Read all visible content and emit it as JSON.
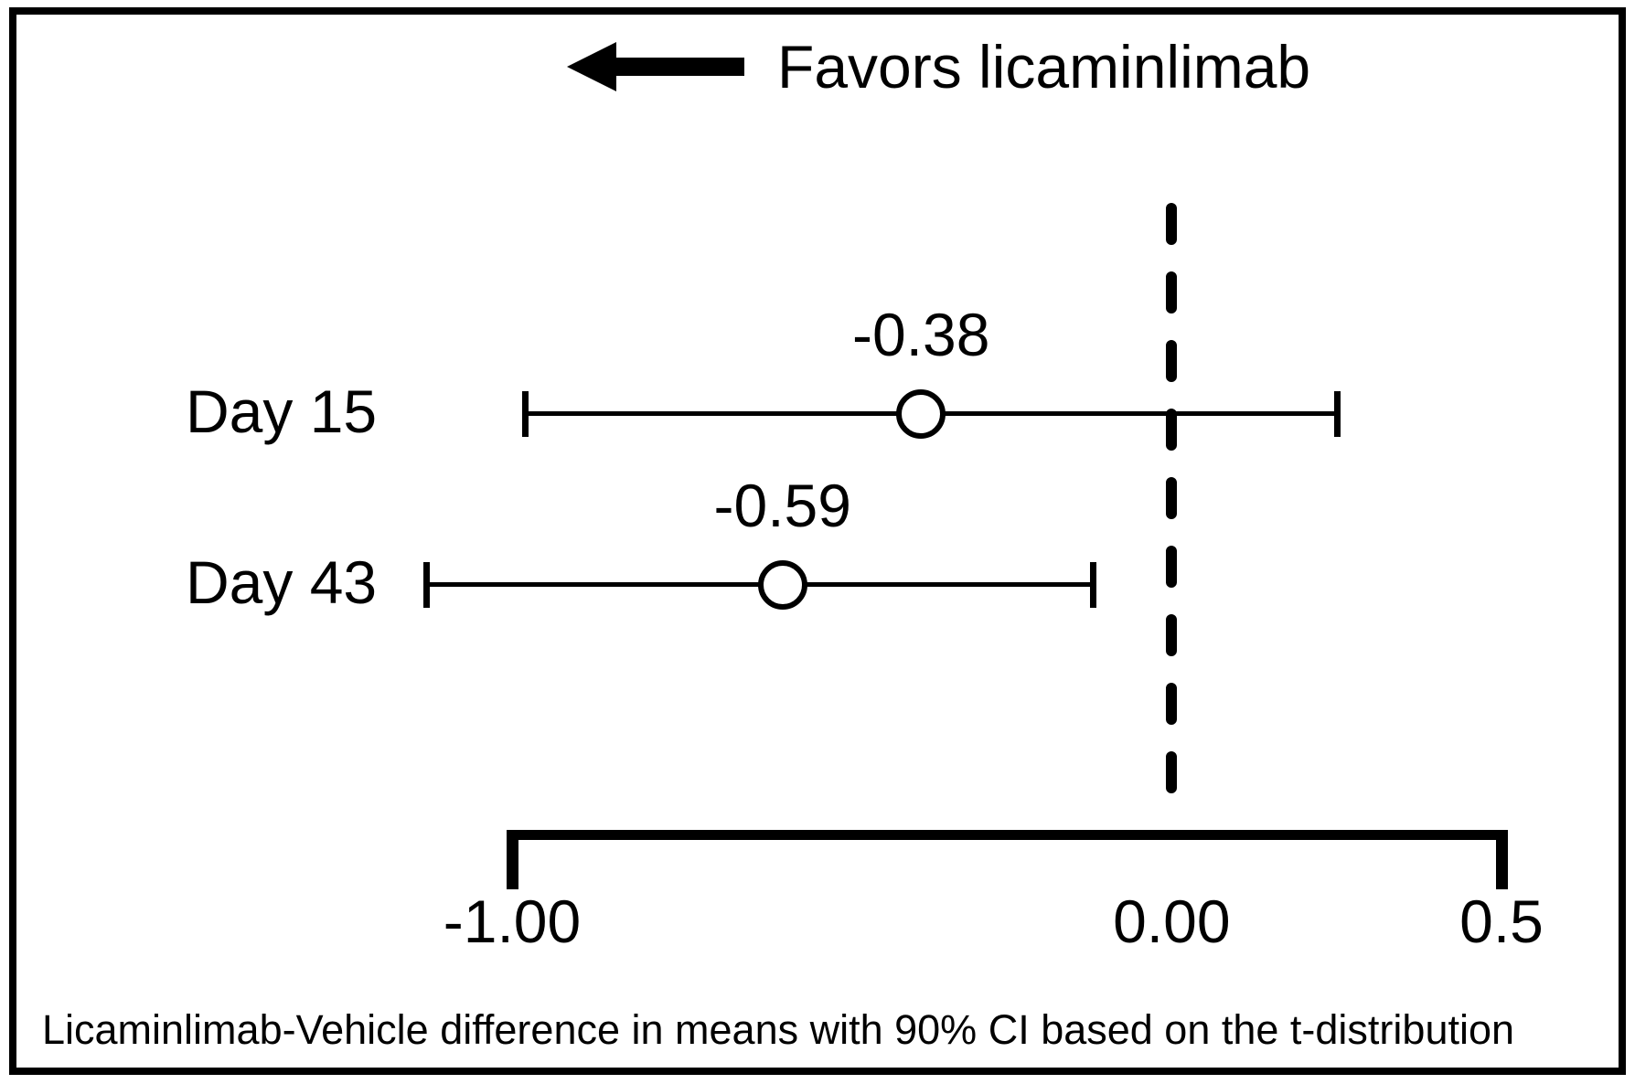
{
  "header": {
    "arrow_label": "Favors licaminlimab",
    "arrow_icon": "left-arrow"
  },
  "footnote": "Licaminlimab-Vehicle difference in means with 90% CI based on the t-distribution",
  "colors": {
    "foreground": "#000000",
    "background": "#ffffff"
  },
  "chart_data": {
    "type": "scatter",
    "subtype": "forest-plot",
    "orientation": "horizontal",
    "title": "Favors licaminlimab",
    "xlabel": "Licaminlimab-Vehicle difference in means with 90% CI based on the t-distribution",
    "ci_level": "90% CI",
    "reference_line": 0,
    "reference_line_style": "dashed",
    "grid": false,
    "legend_position": "top",
    "x_axis": {
      "min": -1.0,
      "max": 0.5,
      "ticks": [
        -1.0,
        0.0,
        0.5
      ],
      "tick_labels": [
        "-1.00",
        "0.00",
        "0.5"
      ]
    },
    "rows": [
      {
        "label": "Day 15",
        "estimate": -0.38,
        "estimate_label": "-0.38",
        "ci_low": -0.98,
        "ci_high": 0.25
      },
      {
        "label": "Day 43",
        "estimate": -0.59,
        "estimate_label": "-0.59",
        "ci_low": -1.13,
        "ci_high": -0.12
      }
    ]
  }
}
